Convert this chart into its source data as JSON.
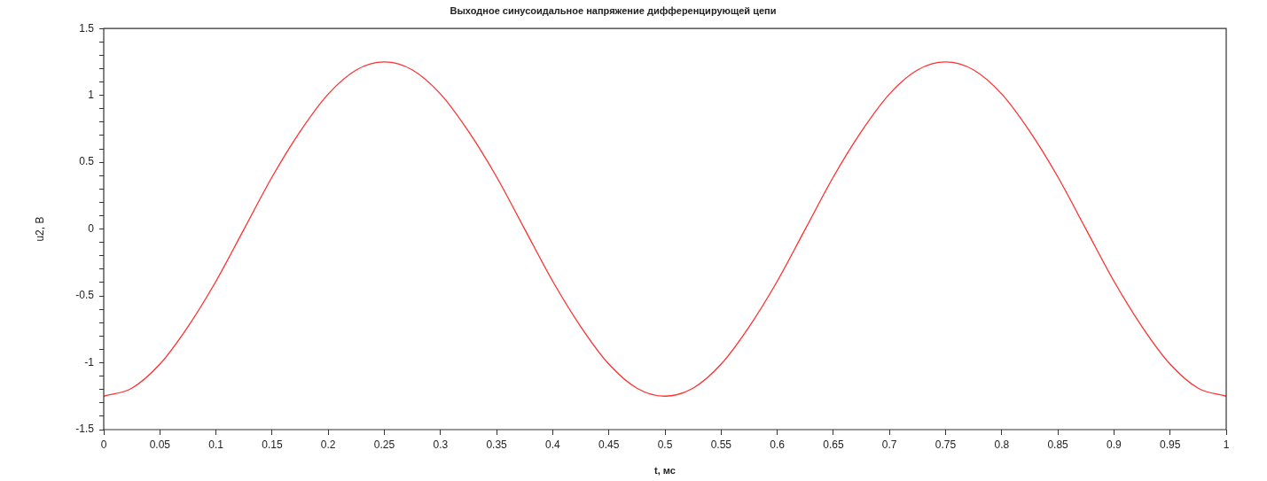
{
  "chart_data": {
    "type": "line",
    "title": "Выходное синусоидальное напряжение дифференцирующей цепи",
    "xlabel": "t, мс",
    "ylabel": "u2, В",
    "x": [
      0,
      0.025,
      0.05,
      0.075,
      0.1,
      0.125,
      0.15,
      0.175,
      0.2,
      0.225,
      0.25,
      0.275,
      0.3,
      0.325,
      0.35,
      0.375,
      0.4,
      0.425,
      0.45,
      0.475,
      0.5,
      0.525,
      0.55,
      0.575,
      0.6,
      0.625,
      0.65,
      0.675,
      0.7,
      0.725,
      0.75,
      0.775,
      0.8,
      0.825,
      0.85,
      0.875,
      0.9,
      0.925,
      0.95,
      0.975,
      1
    ],
    "series": [
      {
        "color": "#ff3030",
        "values": [
          -1.25,
          -1.19,
          -1.01,
          -0.73,
          -0.39,
          0,
          0.39,
          0.73,
          1.01,
          1.19,
          1.25,
          1.19,
          1.01,
          0.73,
          0.39,
          0,
          -0.39,
          -0.73,
          -1.01,
          -1.19,
          -1.25,
          -1.19,
          -1.01,
          -0.73,
          -0.39,
          0,
          0.39,
          0.73,
          1.01,
          1.19,
          1.25,
          1.19,
          1.01,
          0.73,
          0.39,
          0,
          -0.39,
          -0.73,
          -1.01,
          -1.19,
          -1.25
        ]
      }
    ],
    "xlim": [
      0,
      1
    ],
    "xticks": [
      0,
      0.05,
      0.1,
      0.15,
      0.2,
      0.25,
      0.3,
      0.35,
      0.4,
      0.45,
      0.5,
      0.55,
      0.6,
      0.65,
      0.7,
      0.75,
      0.8,
      0.85,
      0.9,
      0.95,
      1
    ],
    "ylim": [
      -1.5,
      1.5
    ],
    "yticks": [
      {
        "value": -1.5,
        "label": "-1.5"
      },
      {
        "value": -1.4,
        "label": null
      },
      {
        "value": -1.3,
        "label": null
      },
      {
        "value": -1.2,
        "label": null
      },
      {
        "value": -1.1,
        "label": null
      },
      {
        "value": -1,
        "label": "-1"
      },
      {
        "value": -0.9,
        "label": null
      },
      {
        "value": -0.8,
        "label": null
      },
      {
        "value": -0.7,
        "label": null
      },
      {
        "value": -0.6,
        "label": null
      },
      {
        "value": -0.5,
        "label": "-0.5"
      },
      {
        "value": -0.4,
        "label": null
      },
      {
        "value": -0.3,
        "label": null
      },
      {
        "value": -0.2,
        "label": null
      },
      {
        "value": -0.1,
        "label": null
      },
      {
        "value": 0,
        "label": "0"
      },
      {
        "value": 0.1,
        "label": null
      },
      {
        "value": 0.2,
        "label": null
      },
      {
        "value": 0.3,
        "label": null
      },
      {
        "value": 0.4,
        "label": null
      },
      {
        "value": 0.5,
        "label": "0.5"
      },
      {
        "value": 0.6,
        "label": null
      },
      {
        "value": 0.7,
        "label": null
      },
      {
        "value": 0.8,
        "label": null
      },
      {
        "value": 0.9,
        "label": null
      },
      {
        "value": 1,
        "label": "1"
      },
      {
        "value": 1.1,
        "label": null
      },
      {
        "value": 1.2,
        "label": null
      },
      {
        "value": 1.3,
        "label": null
      },
      {
        "value": 1.4,
        "label": null
      },
      {
        "value": 1.5,
        "label": "1.5"
      }
    ],
    "grid": false,
    "legend": false,
    "marker": "none",
    "line_style": "solid"
  }
}
